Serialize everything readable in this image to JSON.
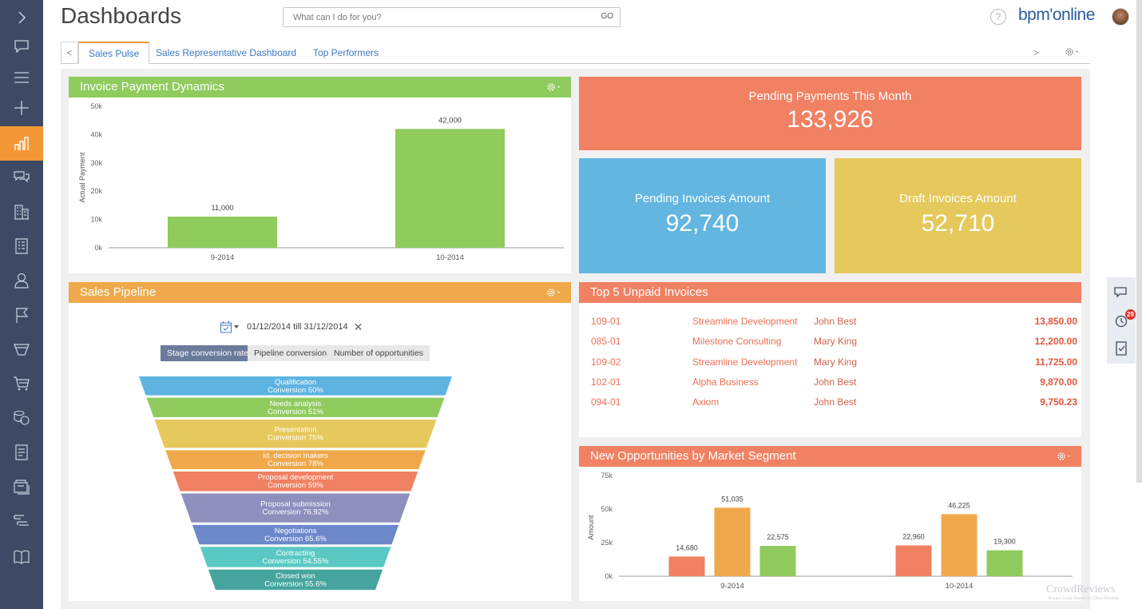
{
  "header": {
    "title": "Dashboards",
    "search_placeholder": "What can I do for you?",
    "search_go": "GO",
    "help": "?",
    "logo": "bpm'online"
  },
  "tabs": {
    "prev": "<",
    "next": ">",
    "items": [
      {
        "label": "Sales Pulse",
        "active": true
      },
      {
        "label": "Sales Representative Dashboard",
        "active": false
      },
      {
        "label": "Top Performers",
        "active": false
      }
    ]
  },
  "sidebar": {
    "items": [
      "expand-icon",
      "feed-icon",
      "menu-icon",
      "add-icon",
      "dashboards-icon",
      "communication-icon",
      "accounts-icon",
      "contacts-icon",
      "user-icon",
      "flag-icon",
      "funnel-icon",
      "cart-icon",
      "payments-icon",
      "document-icon",
      "products-icon",
      "orders-icon",
      "knowledge-base-icon"
    ],
    "active_index": 4
  },
  "colors": {
    "green": "#8fcb5d",
    "orange": "#f0a94a",
    "salmon": "#f08163",
    "blue": "#62b6e0",
    "yellow": "#e6c95c",
    "sidebar": "#3e4a63",
    "accent": "#f49737"
  },
  "widgets": {
    "invoice_dynamics": {
      "title": "Invoice Payment Dynamics"
    },
    "pending_month": {
      "label": "Pending Payments This Month",
      "value": "133,926"
    },
    "pending_invoices": {
      "label": "Pending Invoices Amount",
      "value": "92,740"
    },
    "draft_invoices": {
      "label": "Draft Invoices Amount",
      "value": "52,710"
    },
    "pipeline": {
      "title": "Sales Pipeline",
      "period": "01/12/2014 till 31/12/2014",
      "close": "✕",
      "buttons": [
        "Stage conversion rate",
        "Pipeline conversion",
        "Number of opportunities"
      ]
    },
    "unpaid": {
      "title": "Top 5 Unpaid Invoices",
      "rows": [
        {
          "number": "109-01",
          "account": "Streamline Development",
          "owner": "John Best",
          "amount": "13,850.00"
        },
        {
          "number": "085-01",
          "account": "Milestone Consulting",
          "owner": "Mary King",
          "amount": "12,200.00"
        },
        {
          "number": "109-02",
          "account": "Streamline Development",
          "owner": "Mary King",
          "amount": "11,725.00"
        },
        {
          "number": "102-01",
          "account": "Alpha Business",
          "owner": "John Best",
          "amount": "9,870.00"
        },
        {
          "number": "094-01",
          "account": "Axiom",
          "owner": "John Best",
          "amount": "9,750.23"
        }
      ]
    },
    "segments": {
      "title": "New Opportunities by Market Segment"
    }
  },
  "rail": {
    "badge": "29"
  },
  "watermark": {
    "title": "CrowdReviews",
    "subtitle": "Buyers Guide Based On Client Reviews"
  },
  "chart_data": [
    {
      "type": "bar",
      "title": "Invoice Payment Dynamics",
      "categories": [
        "9-2014",
        "10-2014"
      ],
      "values": [
        11000,
        42000
      ],
      "value_labels": [
        "11,000",
        "42,000"
      ],
      "xlabel": "",
      "ylabel": "Actual Payment",
      "ylim": [
        0,
        50000
      ],
      "yticks": [
        "0k",
        "10k",
        "20k",
        "30k",
        "40k",
        "50k"
      ],
      "color": "#8fcb5d"
    },
    {
      "type": "funnel",
      "title": "Sales Pipeline",
      "stages": [
        {
          "name": "Qualification",
          "conversion": "Conversion 50%",
          "color": "#5db4e0",
          "weight": 26
        },
        {
          "name": "Needs analysis",
          "conversion": "Conversion 51%",
          "color": "#8fcb5d",
          "weight": 27
        },
        {
          "name": "Presentation",
          "conversion": "Conversion 75%",
          "color": "#e6c95c",
          "weight": 39
        },
        {
          "name": "Id. decision makers",
          "conversion": "Conversion 78%",
          "color": "#f0a94a",
          "weight": 26
        },
        {
          "name": "Proposal development",
          "conversion": "Conversion 59%",
          "color": "#f08163",
          "weight": 27
        },
        {
          "name": "Proposal submission",
          "conversion": "Conversion 76.92%",
          "color": "#8d8fbd",
          "weight": 40
        },
        {
          "name": "Negotiations",
          "conversion": "Conversion 65.6%",
          "color": "#6d88c9",
          "weight": 27
        },
        {
          "name": "Contracting",
          "conversion": "Conversion 54.55%",
          "color": "#5bc9c3",
          "weight": 28
        },
        {
          "name": "Closed won",
          "conversion": "Conversion 55.6%",
          "color": "#45a59e",
          "weight": 28
        }
      ]
    },
    {
      "type": "bar",
      "title": "New Opportunities by Market Segment",
      "categories": [
        "9-2014",
        "10-2014"
      ],
      "series": [
        {
          "values": [
            14680,
            22960
          ],
          "labels": [
            "14,680",
            "22,960"
          ],
          "color": "#f08163"
        },
        {
          "values": [
            51035,
            46225
          ],
          "labels": [
            "51,035",
            "46,225"
          ],
          "color": "#f0a94a"
        },
        {
          "values": [
            22575,
            19300
          ],
          "labels": [
            "22,575",
            "19,300"
          ],
          "color": "#8fcb5d"
        }
      ],
      "xlabel": "",
      "ylabel": "Amount",
      "ylim": [
        0,
        75000
      ],
      "yticks": [
        "0k",
        "25k",
        "50k",
        "75k"
      ]
    }
  ]
}
